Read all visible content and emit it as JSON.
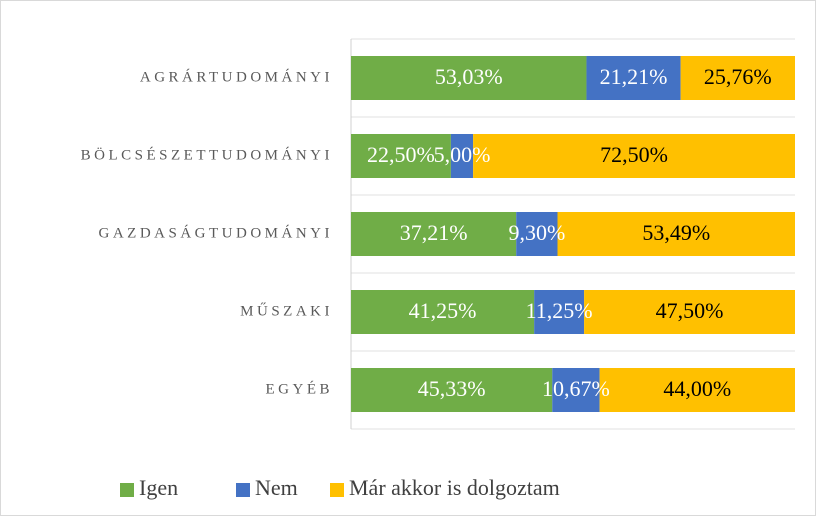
{
  "chart_data": {
    "type": "stacked_barh",
    "categories": [
      "AGRÁRTUDOMÁNYI",
      "BÖLCSÉSZETTUDOMÁNYI",
      "GAZDASÁGTUDOMÁNYI",
      "MŰSZAKI",
      "EGYÉB"
    ],
    "series": [
      {
        "name": "Igen",
        "color": "#70ad47",
        "label_color": "#ffffff",
        "values": [
          53.03,
          22.5,
          37.21,
          41.25,
          45.33
        ],
        "value_labels": [
          "53,03%",
          "22,50%",
          "37,21%",
          "41,25%",
          "45,33%"
        ]
      },
      {
        "name": "Nem",
        "color": "#4472c4",
        "label_color": "#ffffff",
        "values": [
          21.21,
          5.0,
          9.3,
          11.25,
          10.67
        ],
        "value_labels": [
          "21,21%",
          "5,00%",
          "9,30%",
          "11,25%",
          "10,67%"
        ]
      },
      {
        "name": "Már akkor is dolgoztam",
        "color": "#ffc000",
        "label_color": "#000000",
        "values": [
          25.76,
          72.5,
          53.49,
          47.5,
          44.0
        ],
        "value_labels": [
          "25,76%",
          "72,50%",
          "53,49%",
          "47,50%",
          "44,00%"
        ]
      }
    ],
    "xlim": [
      0,
      100
    ],
    "legend": "bottom"
  }
}
